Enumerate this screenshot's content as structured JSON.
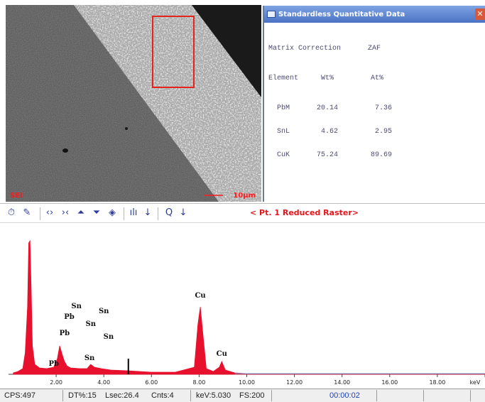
{
  "sem_image": {
    "detector_label": "SEI",
    "scale_label": "10µm"
  },
  "quant_window": {
    "title": "Standardless Quantitative Data",
    "close_icon": "close-icon",
    "matrix_label": "Matrix Correction",
    "matrix_value": "ZAF",
    "headers": {
      "element": "Element",
      "wt": "Wt%",
      "at": "At%"
    },
    "rows": [
      {
        "element": "PbM",
        "wt": "20.14",
        "at": "7.36"
      },
      {
        "element": "SnL",
        "wt": "4.62",
        "at": "2.95"
      },
      {
        "element": "CuK",
        "wt": "75.24",
        "at": "89.69"
      }
    ]
  },
  "toolbar": {
    "icons": [
      "timer-icon",
      "marker-icon",
      "expand-icon",
      "compress-icon",
      "scale-up-icon",
      "scale-down-icon",
      "fill-icon",
      "peak-id-icon",
      "arrow-down-icon",
      "zoom-icon",
      "arrow-down-icon"
    ],
    "raster_label": "< Pt. 1 Reduced Raster>"
  },
  "chart_data": {
    "type": "line",
    "title": "",
    "xlabel": "keV",
    "ylabel": "",
    "xlim": [
      0,
      20
    ],
    "x_ticks": [
      "2.00",
      "4.00",
      "6.00",
      "8.00",
      "10.00",
      "12.00",
      "14.00",
      "16.00",
      "18.00",
      "keV"
    ],
    "series": [
      {
        "color": "#e8112d",
        "x": [
          0.2,
          0.4,
          0.6,
          0.7,
          0.8,
          0.85,
          0.9,
          0.95,
          1.0,
          1.1,
          1.3,
          1.6,
          1.9,
          2.05,
          2.15,
          2.25,
          2.35,
          2.45,
          2.6,
          3.0,
          3.3,
          3.45,
          3.6,
          3.9,
          4.3,
          5.0,
          6.0,
          7.0,
          7.8,
          7.95,
          8.05,
          8.15,
          8.3,
          8.6,
          8.85,
          8.95,
          9.1,
          9.5,
          10.0,
          11.0,
          12.0,
          13.0,
          14.0,
          15.0,
          16.0,
          17.0,
          18.0,
          19.0,
          20.0
        ],
        "y": [
          2,
          4,
          8,
          30,
          95,
          185,
          188,
          120,
          40,
          14,
          9,
          8,
          10,
          22,
          40,
          28,
          18,
          12,
          9,
          8,
          8,
          14,
          10,
          8,
          6,
          5,
          3,
          3,
          10,
          70,
          95,
          60,
          8,
          4,
          10,
          18,
          6,
          2,
          1,
          1,
          1,
          1,
          1,
          1,
          1,
          1,
          1,
          1,
          1
        ]
      }
    ],
    "peak_labels": [
      {
        "text": "Pb",
        "x": 1.9,
        "y": 12
      },
      {
        "text": "Pb",
        "x": 2.35,
        "y": 55
      },
      {
        "text": "Pb",
        "x": 2.55,
        "y": 78
      },
      {
        "text": "Sn",
        "x": 2.85,
        "y": 93
      },
      {
        "text": "Sn",
        "x": 3.45,
        "y": 68
      },
      {
        "text": "Sn",
        "x": 3.4,
        "y": 20
      },
      {
        "text": "Sn",
        "x": 4.0,
        "y": 86
      },
      {
        "text": "Sn",
        "x": 4.2,
        "y": 50
      },
      {
        "text": "Cu",
        "x": 8.05,
        "y": 108
      },
      {
        "text": "Cu",
        "x": 8.95,
        "y": 26
      }
    ],
    "markers": [
      {
        "x": 5.03,
        "y": 22,
        "color": "#000000"
      }
    ]
  },
  "status_bar": {
    "cps": "CPS:497",
    "dt": "DT%:15",
    "lsec": "Lsec:26.4",
    "cnts": "Cnts:4",
    "kev": "keV:5.030",
    "fs": "FS:200",
    "time": "00:00:02"
  }
}
